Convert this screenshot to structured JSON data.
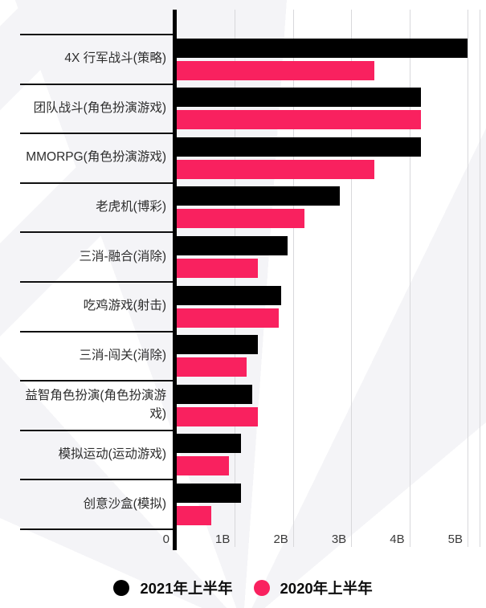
{
  "chart_data": {
    "type": "bar",
    "orientation": "horizontal",
    "title": "",
    "xlabel": "",
    "ylabel": "",
    "categories": [
      "4X 行军战斗(策略)",
      "团队战斗(角色扮演游戏)",
      "MMORPG(角色扮演游戏)",
      "老虎机(博彩)",
      "三消-融合(消除)",
      "吃鸡游戏(射击)",
      "三消-闯关(消除)",
      "益智角色扮演(角色扮演游戏)",
      "模拟运动(运动游戏)",
      "创意沙盒(模拟)"
    ],
    "series": [
      {
        "name": "2021年上半年",
        "color": "#000000",
        "values": [
          5.0,
          4.2,
          4.2,
          2.8,
          1.9,
          1.8,
          1.4,
          1.3,
          1.1,
          1.1
        ]
      },
      {
        "name": "2020年上半年",
        "color": "#f9215f",
        "values": [
          3.4,
          4.2,
          3.4,
          2.2,
          1.4,
          1.75,
          1.2,
          1.4,
          0.9,
          0.6
        ]
      }
    ],
    "value_unit": "B",
    "x_ticks": [
      "0",
      "1B",
      "2B",
      "3B",
      "4B",
      "5B"
    ],
    "x_tick_values": [
      0,
      1,
      2,
      3,
      4,
      5
    ],
    "xlim": [
      0,
      5.2
    ],
    "grid": "vertical",
    "legend_position": "bottom"
  },
  "colors": {
    "bar_2021": "#000000",
    "bar_2020": "#f9215f",
    "axis": "#000000",
    "gridline": "#d8d8db",
    "separator": "#101010",
    "label_text": "#2d2d2d",
    "tick_text": "#3a3a3a",
    "watermark": "#f4f4f7",
    "background": "#ffffff"
  }
}
